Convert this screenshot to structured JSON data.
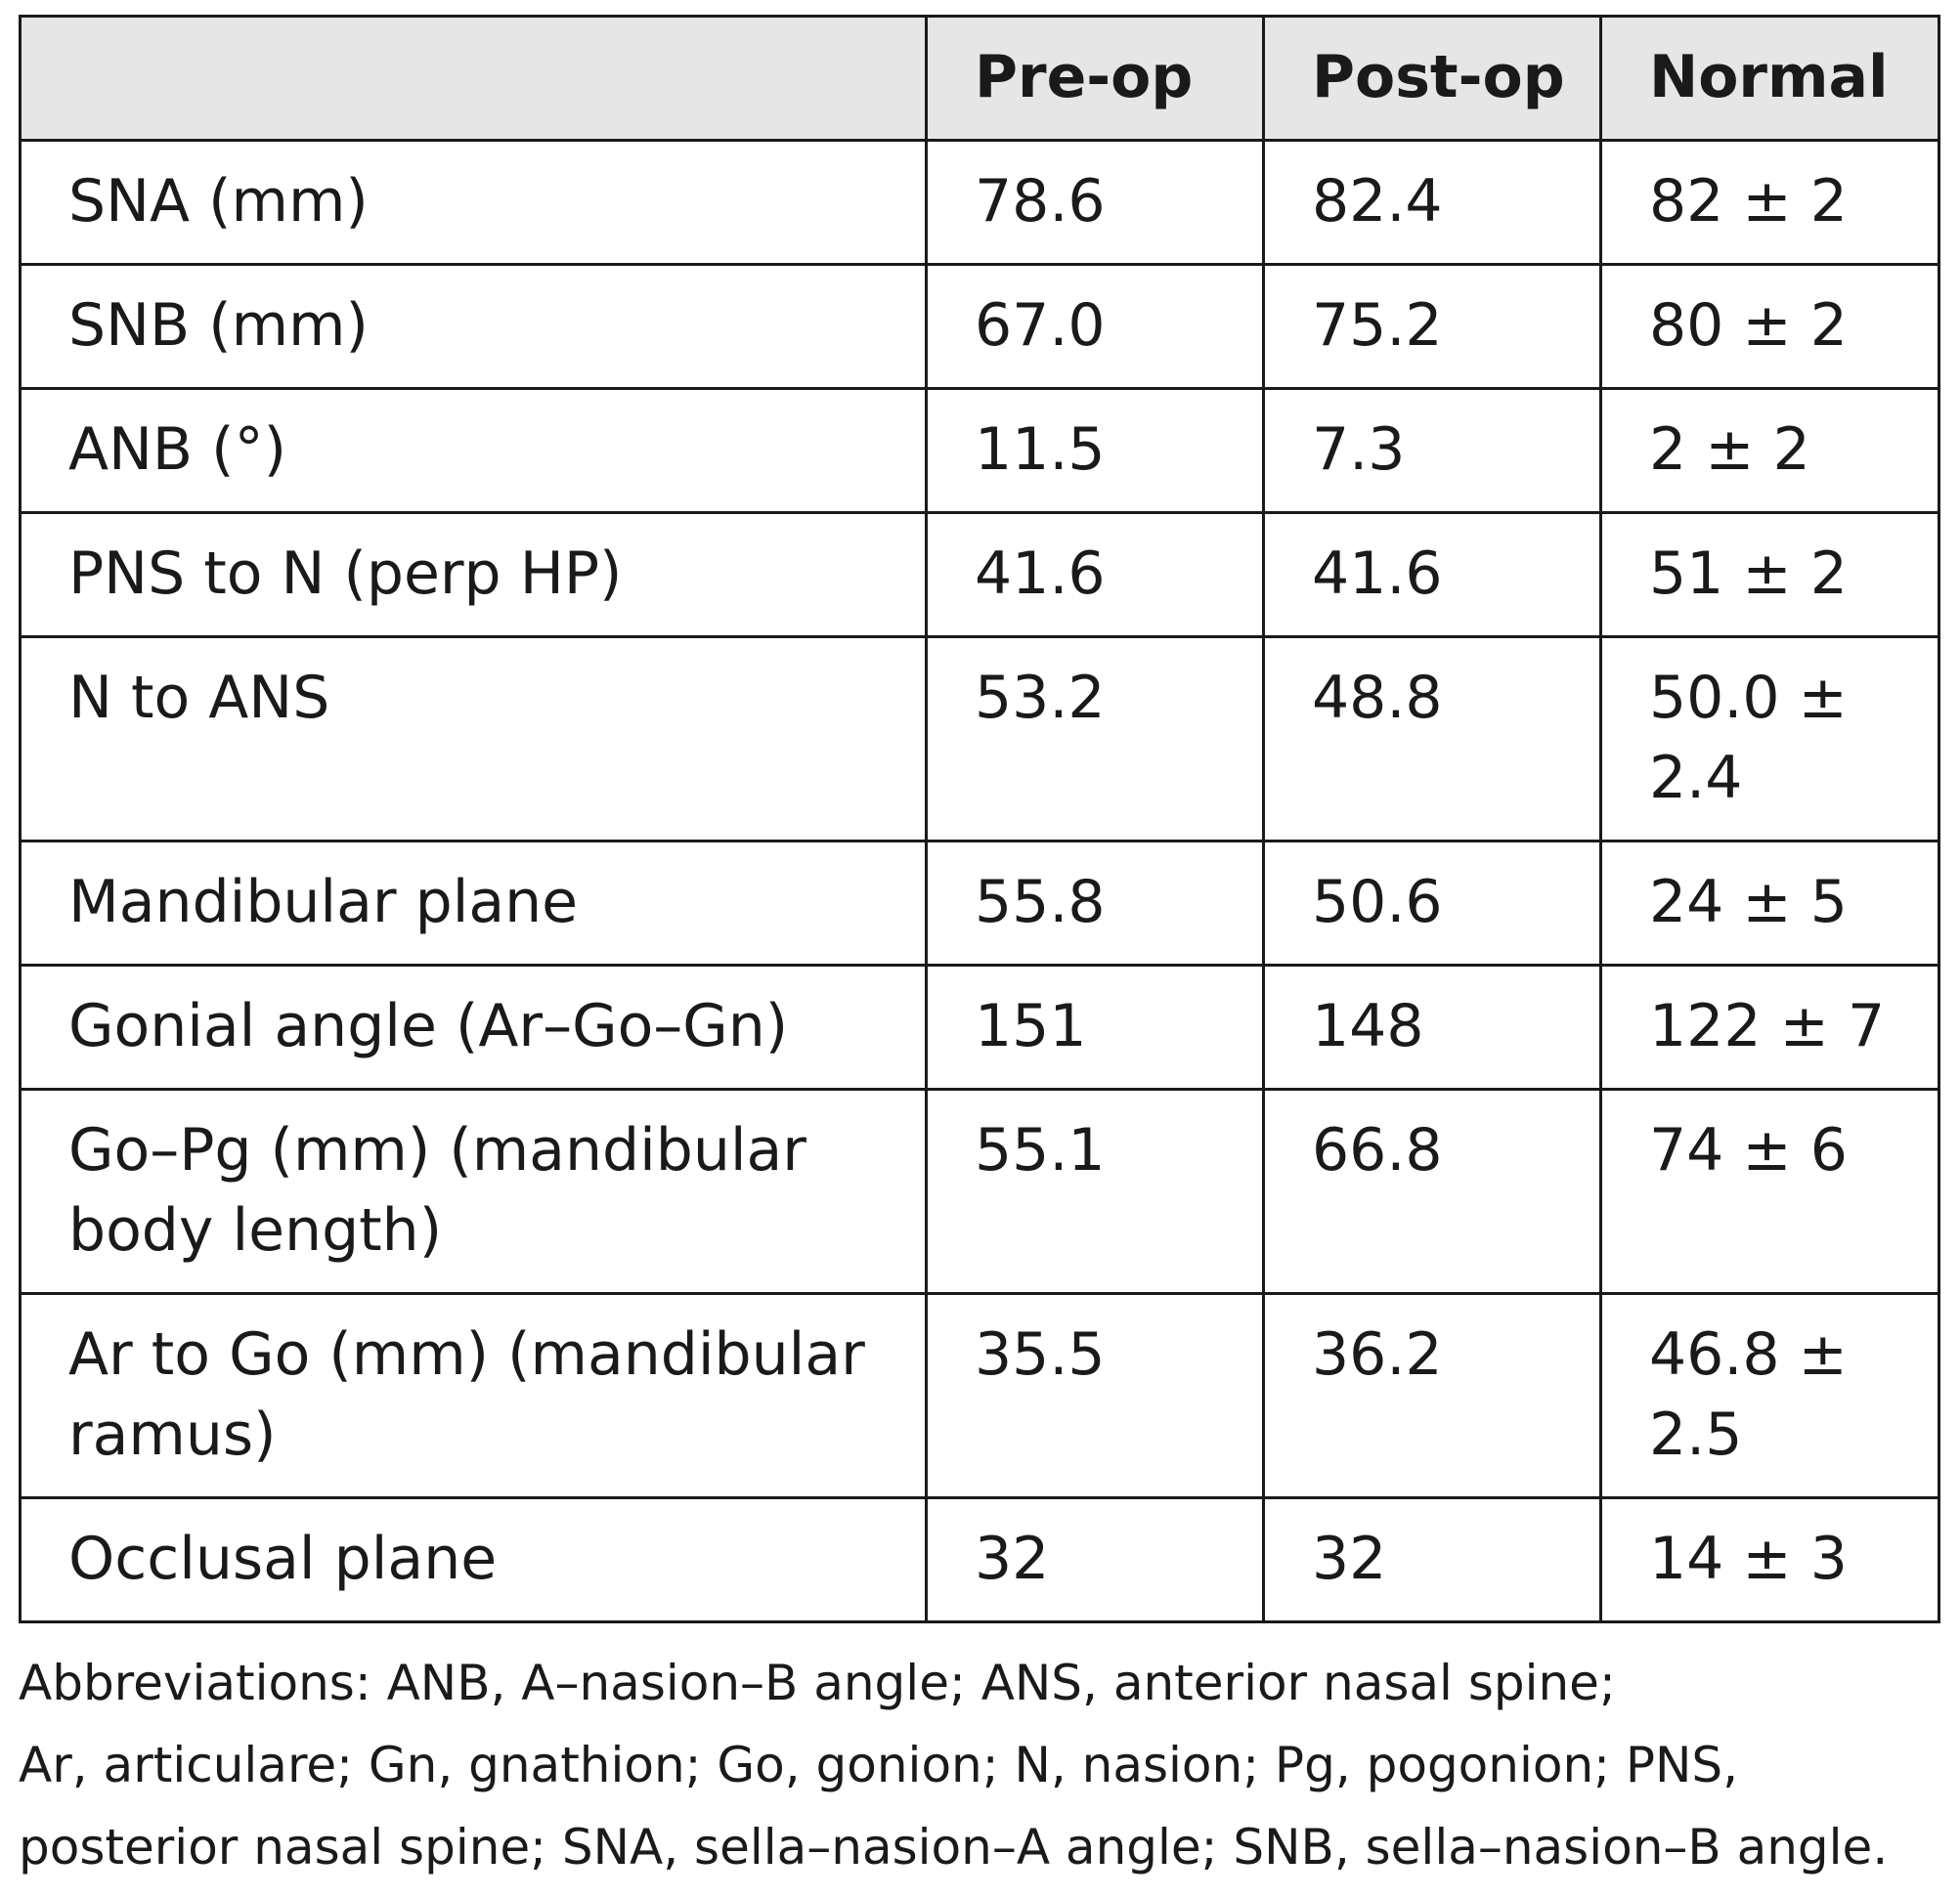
{
  "table": {
    "columns": [
      "Pre-op",
      "Post-op",
      "Normal"
    ],
    "rows": [
      [
        "SNA (mm)",
        "78.6",
        "82.4",
        "82 ± 2"
      ],
      [
        "SNB (mm)",
        "67.0",
        "75.2",
        "80 ± 2"
      ],
      [
        "ANB (°)",
        "11.5",
        "7.3",
        "2 ± 2"
      ],
      [
        "PNS to N (perp HP)",
        "41.6",
        "41.6",
        "51 ± 2"
      ],
      [
        "N to ANS",
        "53.2",
        "48.8",
        "50.0 ± 2.4"
      ],
      [
        "Mandibular plane",
        "55.8",
        "50.6",
        "24 ± 5"
      ],
      [
        "Gonial angle (Ar–Go–Gn)",
        "151",
        "148",
        "122 ± 7"
      ],
      [
        "Go–Pg (mm) (mandibular body length)",
        "55.1",
        "66.8",
        "74 ± 6"
      ],
      [
        "Ar to Go (mm) (mandibular ramus)",
        "35.5",
        "36.2",
        "46.8 ± 2.5"
      ],
      [
        "Occlusal plane",
        "32",
        "32",
        "14 ± 3"
      ]
    ]
  },
  "footnote": [
    "Abbreviations: ANB, A–nasion–B angle; ANS, anterior nasal spine;",
    "Ar, articulare; Gn, gnathion; Go, gonion; N, nasion; Pg, pogonion; PNS,",
    "posterior nasal spine; SNA, sella–nasion–A angle; SNB, sella–nasion–B angle."
  ]
}
